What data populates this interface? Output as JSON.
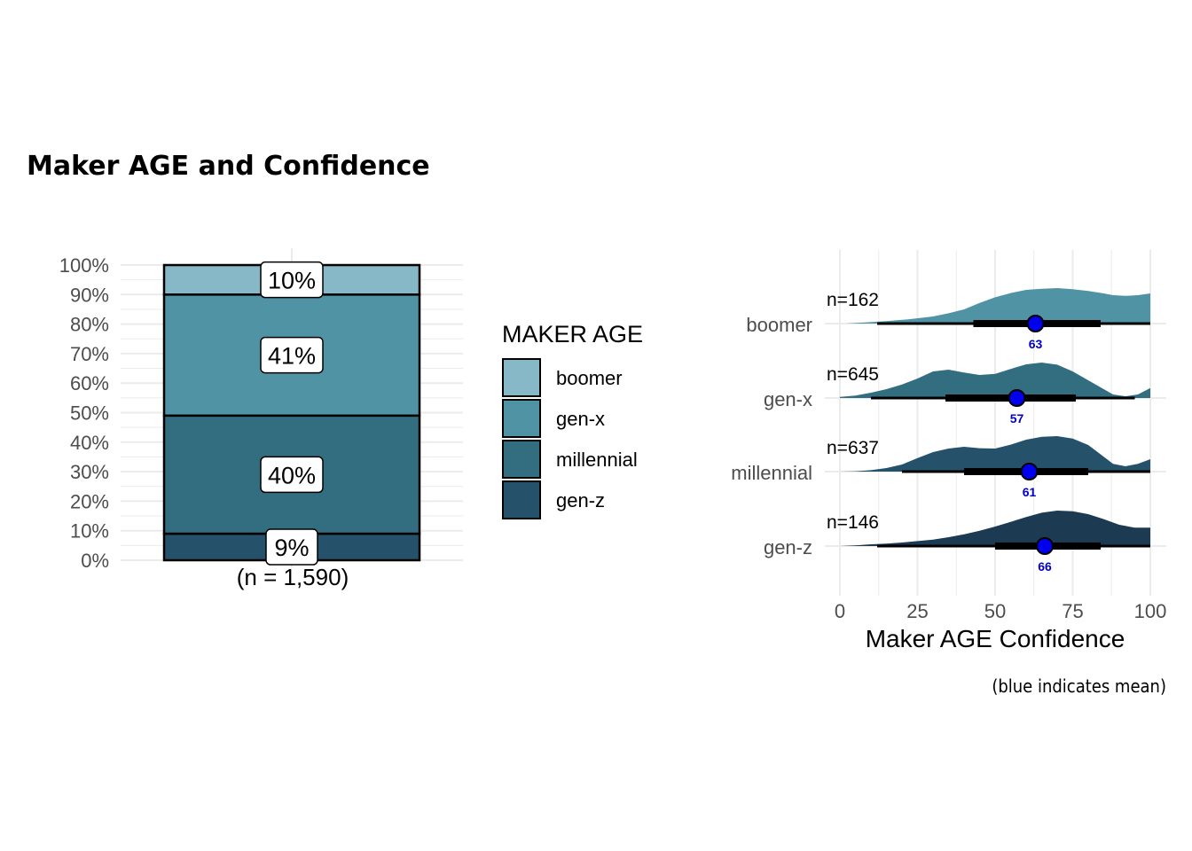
{
  "title": "Maker AGE and Confidence",
  "caption": "(blue indicates mean)",
  "colors": {
    "boomer": "#87B8C8",
    "gen-x": "#5093A5",
    "millennial": "#336E80",
    "gen-z": "#25526A",
    "gen-z-ridge": "#1C3A52",
    "mean_dot": "#0000EE",
    "mean_label": "#0000CC",
    "grid": "#EBEBEB"
  },
  "chart_data": [
    {
      "type": "bar",
      "subtype": "stacked-100",
      "categories": [
        "(n = 1,590)"
      ],
      "series": [
        {
          "name": "gen-z",
          "values": [
            9
          ],
          "label": "9%"
        },
        {
          "name": "millennial",
          "values": [
            40
          ],
          "label": "40%"
        },
        {
          "name": "gen-x",
          "values": [
            41
          ],
          "label": "41%"
        },
        {
          "name": "boomer",
          "values": [
            10
          ],
          "label": "10%"
        }
      ],
      "ylim": [
        0,
        100
      ],
      "yticks": [
        "0%",
        "10%",
        "20%",
        "30%",
        "40%",
        "50%",
        "60%",
        "70%",
        "80%",
        "90%",
        "100%"
      ],
      "legend": {
        "title": "MAKER AGE",
        "placement": "right",
        "entries": [
          "boomer",
          "gen-x",
          "millennial",
          "gen-z"
        ]
      }
    },
    {
      "type": "area",
      "subtype": "ridgeline",
      "xlabel": "Maker AGE Confidence",
      "xlim": [
        0,
        100
      ],
      "xticks": [
        "0",
        "25",
        "50",
        "75",
        "100"
      ],
      "groups": [
        {
          "name": "boomer",
          "n_label": "n=162",
          "mean": 63,
          "mean_label": "63",
          "interval_thin": [
            12,
            100
          ],
          "interval_thick": [
            43,
            84
          ],
          "density_x": [
            2,
            8,
            15,
            22,
            30,
            35,
            40,
            45,
            50,
            55,
            60,
            65,
            70,
            75,
            80,
            85,
            88,
            92,
            96,
            100
          ],
          "density_y": [
            0.0,
            0.03,
            0.07,
            0.12,
            0.2,
            0.29,
            0.4,
            0.58,
            0.74,
            0.86,
            0.95,
            0.98,
            1.0,
            0.97,
            0.92,
            0.85,
            0.8,
            0.78,
            0.8,
            0.85
          ]
        },
        {
          "name": "gen-x",
          "n_label": "n=645",
          "mean": 57,
          "mean_label": "57",
          "interval_thin": [
            10,
            95
          ],
          "interval_thick": [
            34,
            76
          ],
          "density_x": [
            0,
            5,
            10,
            15,
            20,
            25,
            30,
            35,
            40,
            45,
            50,
            55,
            60,
            65,
            70,
            75,
            80,
            85,
            88,
            92,
            96,
            100
          ],
          "density_y": [
            0.03,
            0.07,
            0.15,
            0.25,
            0.38,
            0.55,
            0.75,
            0.8,
            0.72,
            0.65,
            0.68,
            0.82,
            0.95,
            1.0,
            0.94,
            0.75,
            0.5,
            0.25,
            0.1,
            0.05,
            0.1,
            0.28
          ]
        },
        {
          "name": "millennial",
          "n_label": "n=637",
          "mean": 61,
          "mean_label": "61",
          "interval_thin": [
            20,
            100
          ],
          "interval_thick": [
            40,
            80
          ],
          "density_x": [
            0,
            5,
            10,
            15,
            20,
            25,
            30,
            35,
            40,
            45,
            50,
            55,
            60,
            65,
            70,
            75,
            80,
            85,
            88,
            92,
            96,
            100
          ],
          "density_y": [
            0.0,
            0.01,
            0.04,
            0.1,
            0.2,
            0.38,
            0.55,
            0.65,
            0.7,
            0.66,
            0.65,
            0.76,
            0.9,
            0.98,
            1.0,
            0.93,
            0.75,
            0.42,
            0.22,
            0.15,
            0.22,
            0.35
          ]
        },
        {
          "name": "gen-z",
          "n_label": "n=146",
          "mean": 66,
          "mean_label": "66",
          "interval_thin": [
            12,
            100
          ],
          "interval_thick": [
            50,
            84
          ],
          "density_x": [
            0,
            5,
            10,
            15,
            20,
            25,
            30,
            35,
            40,
            45,
            50,
            55,
            60,
            65,
            70,
            75,
            80,
            85,
            90,
            95,
            100
          ],
          "density_y": [
            0.0,
            0.02,
            0.05,
            0.07,
            0.1,
            0.14,
            0.18,
            0.25,
            0.33,
            0.43,
            0.55,
            0.68,
            0.82,
            0.94,
            1.0,
            0.98,
            0.9,
            0.76,
            0.6,
            0.52,
            0.52
          ]
        }
      ]
    }
  ]
}
